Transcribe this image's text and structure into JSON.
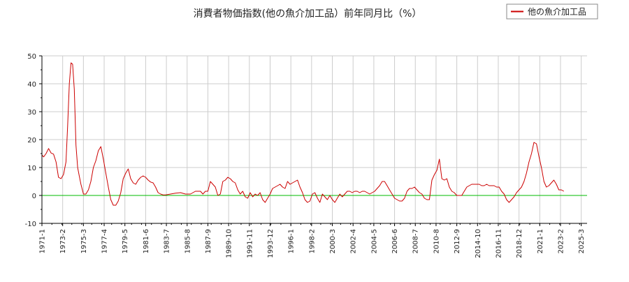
{
  "chart_data": {
    "type": "line",
    "title": "消費者物価指数(他の魚介加工品）前年同月比（%）",
    "xlabel": "",
    "ylabel": "",
    "ylim": [
      -10,
      50
    ],
    "y_ticks": [
      "50",
      "40",
      "30",
      "20",
      "10",
      "0",
      "-10"
    ],
    "x_tick_labels": [
      "1971-1",
      "1973-2",
      "1975-3",
      "1977-4",
      "1979-5",
      "1981-6",
      "1983-7",
      "1985-8",
      "1987-9",
      "1989-10",
      "1991-11",
      "1993-12",
      "1996-1",
      "1998-2",
      "2000-3",
      "2002-4",
      "2004-5",
      "2006-6",
      "2008-7",
      "2010-8",
      "2012-9",
      "2014-10",
      "2016-11",
      "2018-12",
      "2021-1",
      "2023-2",
      "2025-3"
    ],
    "grid": true,
    "legend_position": "top-right",
    "zero_line": true,
    "colors": {
      "series": "#cc0000",
      "zero_line": "#00bb00",
      "grid": "#cccccc",
      "axis": "#000000"
    },
    "series": [
      {
        "name": "他の魚介加工品",
        "points": [
          [
            "1971-1",
            14.5
          ],
          [
            "1971-3",
            13.8
          ],
          [
            "1971-6",
            15.0
          ],
          [
            "1971-9",
            16.8
          ],
          [
            "1971-12",
            15.2
          ],
          [
            "1972-3",
            14.8
          ],
          [
            "1972-6",
            12.0
          ],
          [
            "1972-9",
            6.5
          ],
          [
            "1972-12",
            6.0
          ],
          [
            "1973-3",
            7.5
          ],
          [
            "1973-6",
            12.0
          ],
          [
            "1973-8",
            25.0
          ],
          [
            "1973-10",
            40.0
          ],
          [
            "1973-12",
            47.5
          ],
          [
            "1974-2",
            47.0
          ],
          [
            "1974-4",
            38.0
          ],
          [
            "1974-6",
            18.0
          ],
          [
            "1974-8",
            10.0
          ],
          [
            "1974-10",
            7.0
          ],
          [
            "1974-12",
            4.0
          ],
          [
            "1975-3",
            0.5
          ],
          [
            "1975-6",
            0.5
          ],
          [
            "1975-9",
            2.0
          ],
          [
            "1975-12",
            5.0
          ],
          [
            "1976-3",
            10.0
          ],
          [
            "1976-6",
            12.5
          ],
          [
            "1976-9",
            16.0
          ],
          [
            "1976-12",
            17.5
          ],
          [
            "1977-3",
            13.0
          ],
          [
            "1977-6",
            8.0
          ],
          [
            "1977-9",
            3.0
          ],
          [
            "1977-12",
            -1.5
          ],
          [
            "1978-3",
            -3.5
          ],
          [
            "1978-6",
            -3.5
          ],
          [
            "1978-9",
            -2.0
          ],
          [
            "1978-12",
            1.0
          ],
          [
            "1979-3",
            6.0
          ],
          [
            "1979-6",
            8.0
          ],
          [
            "1979-9",
            9.5
          ],
          [
            "1979-12",
            6.0
          ],
          [
            "1980-3",
            4.5
          ],
          [
            "1980-6",
            4.0
          ],
          [
            "1980-9",
            5.5
          ],
          [
            "1980-12",
            6.5
          ],
          [
            "1981-3",
            7.0
          ],
          [
            "1981-6",
            6.5
          ],
          [
            "1981-9",
            5.5
          ],
          [
            "1981-12",
            4.8
          ],
          [
            "1982-3",
            4.5
          ],
          [
            "1982-6",
            3.0
          ],
          [
            "1982-9",
            1.0
          ],
          [
            "1982-12",
            0.5
          ],
          [
            "1983-3",
            0.2
          ],
          [
            "1983-6",
            0.2
          ],
          [
            "1983-12",
            0.5
          ],
          [
            "1984-6",
            0.8
          ],
          [
            "1984-12",
            1.0
          ],
          [
            "1985-6",
            0.5
          ],
          [
            "1985-12",
            0.5
          ],
          [
            "1986-3",
            1.0
          ],
          [
            "1986-6",
            1.5
          ],
          [
            "1986-12",
            1.5
          ],
          [
            "1987-3",
            0.5
          ],
          [
            "1987-6",
            1.5
          ],
          [
            "1987-9",
            1.5
          ],
          [
            "1987-12",
            5.0
          ],
          [
            "1988-3",
            4.0
          ],
          [
            "1988-6",
            3.0
          ],
          [
            "1988-9",
            0.0
          ],
          [
            "1988-12",
            0.5
          ],
          [
            "1989-3",
            5.0
          ],
          [
            "1989-6",
            5.5
          ],
          [
            "1989-9",
            6.5
          ],
          [
            "1989-12",
            6.0
          ],
          [
            "1990-3",
            5.0
          ],
          [
            "1990-6",
            4.5
          ],
          [
            "1990-9",
            2.0
          ],
          [
            "1990-12",
            0.5
          ],
          [
            "1991-3",
            1.5
          ],
          [
            "1991-6",
            -0.5
          ],
          [
            "1991-9",
            -1.0
          ],
          [
            "1991-12",
            1.0
          ],
          [
            "1992-3",
            -0.5
          ],
          [
            "1992-6",
            0.5
          ],
          [
            "1992-9",
            0.0
          ],
          [
            "1992-12",
            1.0
          ],
          [
            "1993-3",
            -1.5
          ],
          [
            "1993-6",
            -2.5
          ],
          [
            "1993-9",
            -1.0
          ],
          [
            "1993-12",
            0.5
          ],
          [
            "1994-3",
            2.5
          ],
          [
            "1994-6",
            3.0
          ],
          [
            "1994-9",
            3.5
          ],
          [
            "1994-12",
            4.0
          ],
          [
            "1995-3",
            3.0
          ],
          [
            "1995-6",
            2.5
          ],
          [
            "1995-9",
            5.0
          ],
          [
            "1995-12",
            4.0
          ],
          [
            "1996-3",
            4.5
          ],
          [
            "1996-6",
            5.0
          ],
          [
            "1996-9",
            5.5
          ],
          [
            "1996-12",
            3.0
          ],
          [
            "1997-3",
            1.0
          ],
          [
            "1997-6",
            -1.5
          ],
          [
            "1997-9",
            -2.5
          ],
          [
            "1997-12",
            -2.0
          ],
          [
            "1998-3",
            0.5
          ],
          [
            "1998-6",
            1.0
          ],
          [
            "1998-9",
            -1.0
          ],
          [
            "1998-12",
            -2.5
          ],
          [
            "1999-3",
            0.5
          ],
          [
            "1999-6",
            -0.5
          ],
          [
            "1999-9",
            -1.5
          ],
          [
            "1999-12",
            0.0
          ],
          [
            "2000-3",
            -1.5
          ],
          [
            "2000-6",
            -2.5
          ],
          [
            "2000-9",
            -1.0
          ],
          [
            "2000-12",
            0.5
          ],
          [
            "2001-3",
            -0.5
          ],
          [
            "2001-6",
            0.5
          ],
          [
            "2001-9",
            1.5
          ],
          [
            "2001-12",
            1.5
          ],
          [
            "2002-3",
            1.0
          ],
          [
            "2002-6",
            1.5
          ],
          [
            "2002-9",
            1.5
          ],
          [
            "2002-12",
            1.0
          ],
          [
            "2003-3",
            1.5
          ],
          [
            "2003-6",
            1.5
          ],
          [
            "2003-9",
            1.0
          ],
          [
            "2003-12",
            0.5
          ],
          [
            "2004-3",
            1.0
          ],
          [
            "2004-6",
            1.5
          ],
          [
            "2004-9",
            2.5
          ],
          [
            "2004-12",
            3.5
          ],
          [
            "2005-3",
            5.0
          ],
          [
            "2005-6",
            5.0
          ],
          [
            "2005-9",
            3.5
          ],
          [
            "2005-12",
            2.0
          ],
          [
            "2006-3",
            0.5
          ],
          [
            "2006-6",
            -1.0
          ],
          [
            "2006-9",
            -1.5
          ],
          [
            "2006-12",
            -2.0
          ],
          [
            "2007-3",
            -2.0
          ],
          [
            "2007-6",
            -1.0
          ],
          [
            "2007-9",
            1.5
          ],
          [
            "2007-12",
            2.5
          ],
          [
            "2008-3",
            2.5
          ],
          [
            "2008-6",
            3.0
          ],
          [
            "2008-9",
            2.0
          ],
          [
            "2008-12",
            1.0
          ],
          [
            "2009-3",
            0.5
          ],
          [
            "2009-6",
            -1.0
          ],
          [
            "2009-9",
            -1.5
          ],
          [
            "2009-12",
            -1.5
          ],
          [
            "2010-3",
            5.5
          ],
          [
            "2010-6",
            7.5
          ],
          [
            "2010-9",
            9.0
          ],
          [
            "2010-12",
            13.0
          ],
          [
            "2011-3",
            6.0
          ],
          [
            "2011-6",
            5.5
          ],
          [
            "2011-9",
            6.0
          ],
          [
            "2011-12",
            3.0
          ],
          [
            "2012-3",
            1.5
          ],
          [
            "2012-6",
            1.0
          ],
          [
            "2012-9",
            0.0
          ],
          [
            "2012-12",
            0.0
          ],
          [
            "2013-3",
            0.0
          ],
          [
            "2013-6",
            1.5
          ],
          [
            "2013-9",
            3.0
          ],
          [
            "2013-12",
            3.5
          ],
          [
            "2014-3",
            4.0
          ],
          [
            "2014-6",
            4.0
          ],
          [
            "2014-9",
            4.0
          ],
          [
            "2014-12",
            4.0
          ],
          [
            "2015-3",
            3.5
          ],
          [
            "2015-6",
            3.5
          ],
          [
            "2015-9",
            4.0
          ],
          [
            "2015-12",
            3.5
          ],
          [
            "2016-3",
            3.5
          ],
          [
            "2016-6",
            3.5
          ],
          [
            "2016-9",
            3.0
          ],
          [
            "2016-12",
            3.0
          ],
          [
            "2017-3",
            1.5
          ],
          [
            "2017-6",
            0.5
          ],
          [
            "2017-9",
            -1.5
          ],
          [
            "2017-12",
            -2.5
          ],
          [
            "2018-3",
            -1.5
          ],
          [
            "2018-6",
            -0.5
          ],
          [
            "2018-9",
            1.0
          ],
          [
            "2018-12",
            2.0
          ],
          [
            "2019-3",
            3.0
          ],
          [
            "2019-6",
            5.0
          ],
          [
            "2019-9",
            8.0
          ],
          [
            "2019-12",
            12.0
          ],
          [
            "2020-3",
            15.0
          ],
          [
            "2020-6",
            19.0
          ],
          [
            "2020-9",
            18.5
          ],
          [
            "2020-12",
            14.0
          ],
          [
            "2021-3",
            10.0
          ],
          [
            "2021-6",
            5.0
          ],
          [
            "2021-9",
            3.0
          ],
          [
            "2021-12",
            3.5
          ],
          [
            "2022-3",
            4.5
          ],
          [
            "2022-6",
            5.5
          ],
          [
            "2022-9",
            4.0
          ],
          [
            "2022-12",
            2.0
          ],
          [
            "2023-3",
            2.0
          ],
          [
            "2023-6",
            1.5
          ]
        ]
      }
    ]
  }
}
